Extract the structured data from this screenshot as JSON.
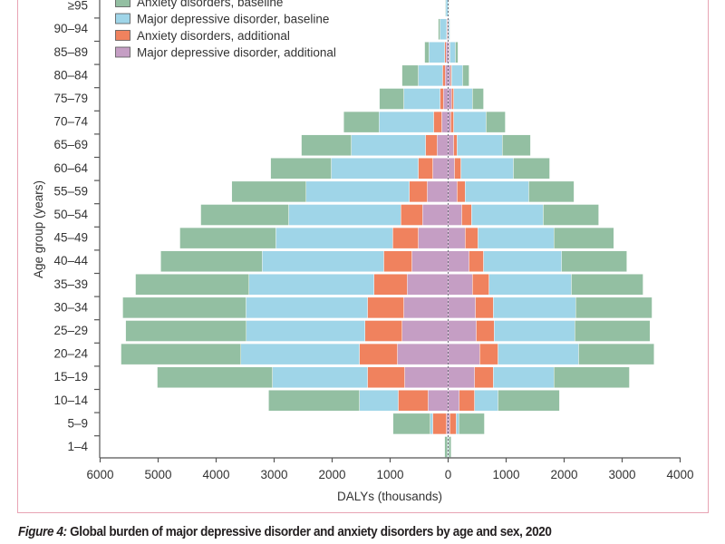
{
  "caption": {
    "figure_label": "Figure 4:",
    "text": " Global burden of major depressive disorder and anxiety disorders by age and sex, 2020"
  },
  "colors": {
    "anxiety_baseline": "#93bfa2",
    "mdd_baseline": "#9fd5e8",
    "anxiety_additional": "#f0825e",
    "mdd_additional": "#c59ec4",
    "frame": "#e8a4b4",
    "axis": "#555555"
  },
  "chart_data": {
    "type": "bar",
    "orientation": "horizontal",
    "layout": "population-pyramid, stacked outward from 0 on both sides",
    "title": "",
    "xlabel": "DALYs (thousands)",
    "ylabel": "Age group (years)",
    "xlim_left": [
      0,
      6000
    ],
    "xlim_right": [
      0,
      4000
    ],
    "xticks": [
      "6000",
      "5000",
      "4000",
      "3000",
      "2000",
      "1000",
      "0",
      "1000",
      "2000",
      "3000",
      "4000"
    ],
    "xtick_values": [
      -6000,
      -5000,
      -4000,
      -3000,
      -2000,
      -1000,
      0,
      1000,
      2000,
      3000,
      4000
    ],
    "grid": false,
    "legend_position": "top-left",
    "categories": [
      "1–4",
      "5–9",
      "10–14",
      "15–19",
      "20–24",
      "25–29",
      "30–34",
      "35–39",
      "40–44",
      "45–49",
      "50–54",
      "55–59",
      "60–64",
      "65–69",
      "70–74",
      "75–79",
      "80–84",
      "85–89",
      "90–94",
      "≥95"
    ],
    "stack_order_from_center": [
      "mdd_additional",
      "anxiety_additional",
      "mdd_baseline",
      "anxiety_baseline"
    ],
    "legend_order": [
      "anxiety_baseline",
      "mdd_baseline",
      "anxiety_additional",
      "mdd_additional"
    ],
    "series": [
      {
        "key": "anxiety_baseline",
        "name": "Anxiety disorders, baseline",
        "left": [
          50,
          640,
          1565,
          1985,
          2065,
          2080,
          2125,
          1955,
          1750,
          1655,
          1515,
          1280,
          1045,
          860,
          610,
          420,
          280,
          75,
          30,
          10
        ],
        "right": [
          40,
          440,
          1060,
          1300,
          1300,
          1295,
          1315,
          1235,
          1125,
          1030,
          955,
          780,
          625,
          485,
          330,
          190,
          110,
          45,
          5,
          5
        ]
      },
      {
        "key": "mdd_baseline",
        "name": "Major depressive disorder, baseline",
        "left": [
          10,
          45,
          670,
          1640,
          2045,
          2045,
          2095,
          2155,
          2095,
          2015,
          1935,
          1780,
          1500,
          1280,
          940,
          625,
          420,
          270,
          115,
          35
        ],
        "right": [
          10,
          45,
          405,
          1045,
          1390,
          1390,
          1420,
          1420,
          1345,
          1310,
          1235,
          1095,
          905,
          780,
          560,
          325,
          190,
          95,
          20,
          15
        ]
      },
      {
        "key": "anxiety_additional",
        "name": "Anxiety disorders, additional",
        "left": [
          0,
          235,
          515,
          640,
          655,
          640,
          625,
          575,
          485,
          440,
          375,
          310,
          250,
          200,
          140,
          60,
          45,
          25,
          10,
          0
        ],
        "right": [
          0,
          110,
          265,
          325,
          315,
          310,
          310,
          285,
          250,
          220,
          170,
          140,
          110,
          60,
          50,
          35,
          20,
          10,
          0,
          0
        ]
      },
      {
        "key": "mdd_additional",
        "name": "Major depressive disorder, additional",
        "left": [
          0,
          30,
          345,
          750,
          875,
          795,
          765,
          705,
          625,
          515,
          440,
          360,
          265,
          190,
          110,
          80,
          50,
          35,
          15,
          5
        ],
        "right": [
          0,
          30,
          190,
          455,
          545,
          485,
          470,
          420,
          360,
          295,
          235,
          155,
          110,
          95,
          45,
          60,
          40,
          20,
          10,
          0
        ]
      }
    ]
  }
}
